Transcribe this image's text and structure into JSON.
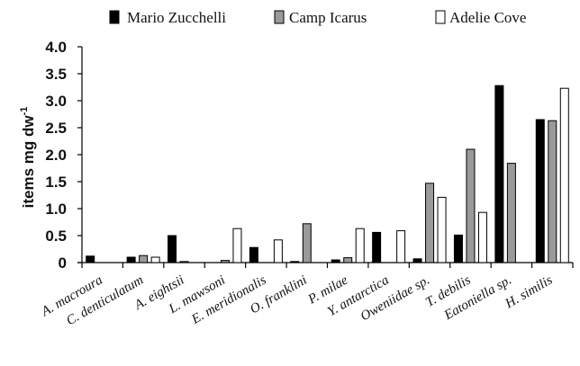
{
  "chart_data": {
    "type": "bar",
    "title": "",
    "xlabel": "",
    "ylabel": {
      "main": "items mg dw",
      "sup": "-1"
    },
    "ylim": [
      0,
      4
    ],
    "yticks": [
      "0",
      "0.5",
      "1.0",
      "1.5",
      "2.0",
      "2.5",
      "3.0",
      "3.5",
      "4.0"
    ],
    "grid": false,
    "legend_position": "top",
    "categories": [
      "A. macroura",
      "C. denticulatum",
      "A. eightsii",
      "L. mawsoni",
      "E. meridionalis",
      "O. franklini",
      "P. milae",
      "Y. antarctica",
      "Oweniidae sp.",
      "T. debilis",
      "Eatoniella sp.",
      "H. similis"
    ],
    "series": [
      {
        "name": "Mario Zucchelli",
        "color": "#000000",
        "values": [
          0.12,
          0.1,
          0.5,
          0.0,
          0.28,
          0.02,
          0.05,
          0.56,
          0.07,
          0.51,
          3.28,
          2.65
        ]
      },
      {
        "name": "Camp Icarus",
        "color": "#9a9a9a",
        "values": [
          0.0,
          0.13,
          0.02,
          0.04,
          0.0,
          0.72,
          0.09,
          0.0,
          1.47,
          2.1,
          1.84,
          2.63
        ]
      },
      {
        "name": "Adelie Cove",
        "color": "#ffffff",
        "values": [
          0.0,
          0.1,
          0.0,
          0.63,
          0.42,
          0.0,
          0.63,
          0.59,
          1.21,
          0.93,
          0.0,
          3.23
        ]
      }
    ]
  }
}
